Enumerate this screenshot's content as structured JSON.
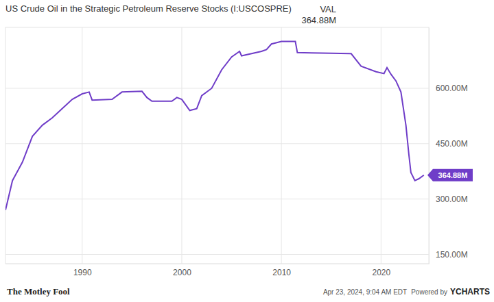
{
  "chart_data": {
    "type": "line",
    "title": "US Crude Oil in the Strategic Petroleum Reserve Stocks (I:USCOSPRE)",
    "annotations": {
      "column_header": "VAL",
      "current_value": "364.88M",
      "end_label": "364.88M",
      "logo": "The Motley Fool",
      "timestamp": "Apr 23, 2024, 9:04 AM EDT",
      "credit": "Powered by",
      "brand": "YCHARTS"
    },
    "x": [
      1982.3,
      1983,
      1984,
      1985,
      1986,
      1987,
      1988,
      1989,
      1990,
      1990.7,
      1991,
      1993,
      1994,
      1996,
      1996.5,
      1997,
      1999,
      1999.5,
      2000,
      2000.8,
      2001.5,
      2002,
      2003,
      2004,
      2005,
      2005.8,
      2006,
      2008,
      2008.5,
      2009,
      2010,
      2011.4,
      2011.6,
      2013,
      2015,
      2017,
      2018,
      2019.5,
      2020.3,
      2020.6,
      2021,
      2021.5,
      2022,
      2022.5,
      2022.8,
      2023,
      2023.4,
      2023.8,
      2024.3
    ],
    "values": [
      270000000,
      350000000,
      400000000,
      470000000,
      500000000,
      520000000,
      545000000,
      570000000,
      585000000,
      590000000,
      568000000,
      570000000,
      590000000,
      592000000,
      575000000,
      565000000,
      565000000,
      575000000,
      570000000,
      540000000,
      545000000,
      580000000,
      600000000,
      650000000,
      685000000,
      700000000,
      688000000,
      700000000,
      705000000,
      720000000,
      727000000,
      727000000,
      697000000,
      696000000,
      695000000,
      694000000,
      660000000,
      645000000,
      640000000,
      656000000,
      638000000,
      620000000,
      590000000,
      500000000,
      420000000,
      372000000,
      350000000,
      355000000,
      364880000
    ],
    "color": "#6f3dc8",
    "xlim": [
      1982.3,
      2024.8
    ],
    "xticks": [
      1990,
      2000,
      2010,
      2020
    ],
    "ylim": [
      125000000,
      765000000
    ],
    "yticks": [
      {
        "value": 150000000,
        "label": "150.00M"
      },
      {
        "value": 300000000,
        "label": "300.00M"
      },
      {
        "value": 450000000,
        "label": "450.00M"
      },
      {
        "value": 600000000,
        "label": "600.00M"
      }
    ],
    "grid": true
  }
}
